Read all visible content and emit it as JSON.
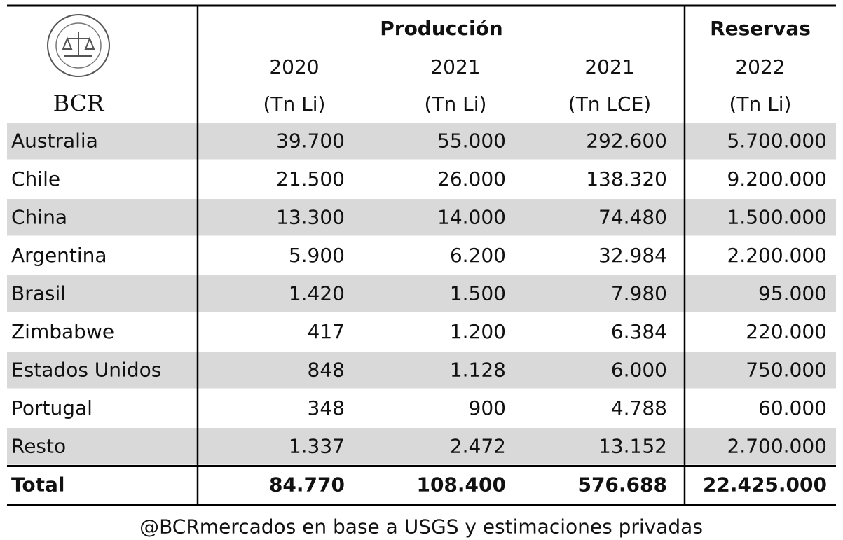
{
  "header": {
    "logo": "BCR",
    "groups": [
      "Producción",
      "Reservas"
    ],
    "columns": [
      {
        "year": "2020",
        "unit": "(Tn Li)"
      },
      {
        "year": "2021",
        "unit": "(Tn Li)"
      },
      {
        "year": "2021",
        "unit": "(Tn LCE)"
      },
      {
        "year": "2022",
        "unit": "(Tn Li)"
      }
    ]
  },
  "table": {
    "rows": [
      [
        "Australia",
        "39.700",
        "55.000",
        "292.600",
        "5.700.000"
      ],
      [
        "Chile",
        "21.500",
        "26.000",
        "138.320",
        "9.200.000"
      ],
      [
        "China",
        "13.300",
        "14.000",
        "74.480",
        "1.500.000"
      ],
      [
        "Argentina",
        "5.900",
        "6.200",
        "32.984",
        "2.200.000"
      ],
      [
        "Brasil",
        "1.420",
        "1.500",
        "7.980",
        "95.000"
      ],
      [
        "Zimbabwe",
        "417",
        "1.200",
        "6.384",
        "220.000"
      ],
      [
        "Estados Unidos",
        "848",
        "1.128",
        "6.000",
        "750.000"
      ],
      [
        "Portugal",
        "348",
        "900",
        "4.788",
        "60.000"
      ],
      [
        "Resto",
        "1.337",
        "2.472",
        "13.152",
        "2.700.000"
      ]
    ],
    "total": [
      "Total",
      "84.770",
      "108.400",
      "576.688",
      "22.425.000"
    ]
  },
  "footer": "@BCRmercados en base a USGS y estimaciones privadas"
}
